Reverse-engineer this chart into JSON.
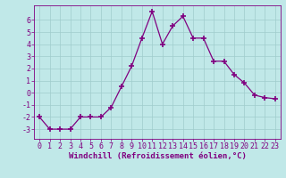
{
  "x": [
    0,
    1,
    2,
    3,
    4,
    5,
    6,
    7,
    8,
    9,
    10,
    11,
    12,
    13,
    14,
    15,
    16,
    17,
    18,
    19,
    20,
    21,
    22,
    23
  ],
  "y": [
    -2.0,
    -3.0,
    -3.0,
    -3.0,
    -2.0,
    -2.0,
    -2.0,
    -1.2,
    0.5,
    2.2,
    4.5,
    6.7,
    4.0,
    5.5,
    6.3,
    4.5,
    4.5,
    2.6,
    2.6,
    1.5,
    0.8,
    -0.2,
    -0.4,
    -0.5
  ],
  "line_color": "#800080",
  "marker": "+",
  "marker_color": "#800080",
  "bg_color": "#c0e8e8",
  "grid_color": "#a0cccc",
  "xlabel": "Windchill (Refroidissement éolien,°C)",
  "xlabel_color": "#800080",
  "tick_color": "#800080",
  "spine_color": "#800080",
  "ylim": [
    -3.8,
    7.2
  ],
  "xlim": [
    -0.5,
    23.5
  ],
  "yticks": [
    -3,
    -2,
    -1,
    0,
    1,
    2,
    3,
    4,
    5,
    6
  ],
  "xticks": [
    0,
    1,
    2,
    3,
    4,
    5,
    6,
    7,
    8,
    9,
    10,
    11,
    12,
    13,
    14,
    15,
    16,
    17,
    18,
    19,
    20,
    21,
    22,
    23
  ],
  "tick_fontsize": 6,
  "xlabel_fontsize": 6.5,
  "marker_size": 4,
  "linewidth": 0.9
}
